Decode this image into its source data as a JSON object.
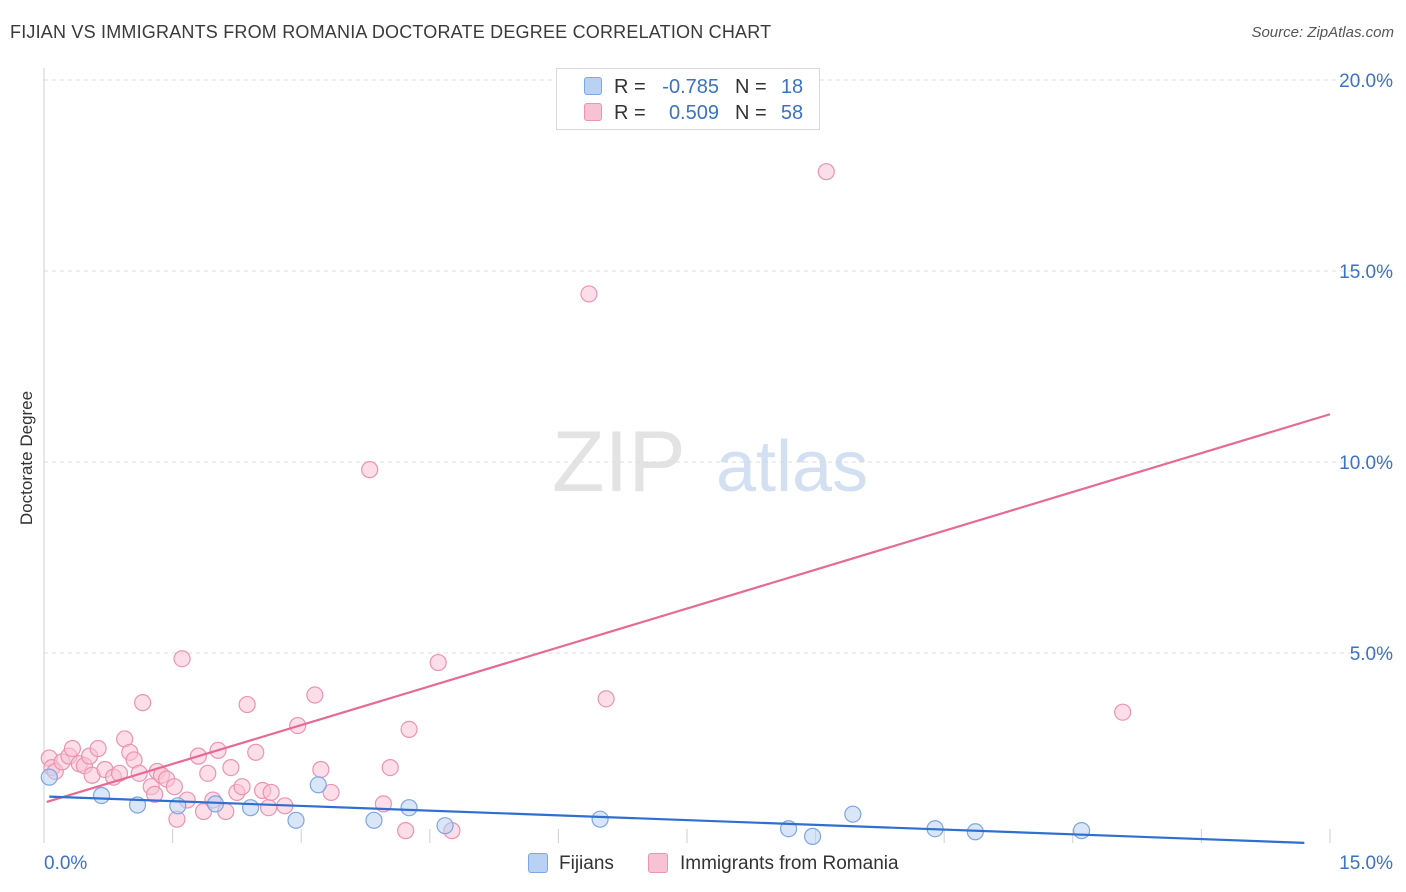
{
  "title": "FIJIAN VS IMMIGRANTS FROM ROMANIA DOCTORATE DEGREE CORRELATION CHART",
  "source": "Source: ZipAtlas.com",
  "watermark": {
    "zip": "ZIP",
    "atlas": "atlas"
  },
  "colors": {
    "blue_fill": "#b9d1f3",
    "blue_stroke": "#7ea6e0",
    "blue_line": "#2f6fd0",
    "pink_fill": "#f7c3d4",
    "pink_stroke": "#ec93b2",
    "pink_line": "#e56b96",
    "axis_text": "#3a72c4",
    "grid": "#dedede"
  },
  "stats": {
    "rows": [
      {
        "r_label": "R =",
        "r_value": "-0.785",
        "n_label": "N =",
        "n_value": "18"
      },
      {
        "r_label": "R =",
        "r_value": "0.509",
        "n_label": "N =",
        "n_value": "58"
      }
    ]
  },
  "chart_data": {
    "type": "scatter",
    "title": "FIJIAN VS IMMIGRANTS FROM ROMANIA DOCTORATE DEGREE CORRELATION CHART",
    "xlabel": "",
    "ylabel": "Doctorate Degree",
    "xlim": [
      0,
      15
    ],
    "ylim": [
      0,
      20.5
    ],
    "x_tick_labels": [
      "0.0%",
      "15.0%"
    ],
    "y_ticks": [
      5,
      10,
      15,
      20
    ],
    "y_tick_labels": [
      "5.0%",
      "10.0%",
      "15.0%",
      "20.0%"
    ],
    "legend": [
      "Fijians",
      "Immigrants from Romania"
    ],
    "legend_position": "bottom-center",
    "series": [
      {
        "name": "Fijians",
        "points": [
          [
            0.05,
            1.75
          ],
          [
            0.66,
            1.27
          ],
          [
            1.08,
            1.02
          ],
          [
            1.55,
            1.0
          ],
          [
            1.99,
            1.05
          ],
          [
            2.4,
            0.95
          ],
          [
            2.93,
            0.62
          ],
          [
            3.19,
            1.55
          ],
          [
            3.84,
            0.62
          ],
          [
            4.25,
            0.95
          ],
          [
            4.67,
            0.48
          ],
          [
            6.48,
            0.65
          ],
          [
            8.68,
            0.4
          ],
          [
            8.96,
            0.2
          ],
          [
            9.43,
            0.78
          ],
          [
            10.39,
            0.4
          ],
          [
            10.86,
            0.32
          ],
          [
            12.1,
            0.35
          ]
        ],
        "trend": [
          [
            0.05,
            1.24
          ],
          [
            14.7,
            0.03
          ]
        ]
      },
      {
        "name": "Immigrants from Romania",
        "points": [
          [
            0.05,
            2.25
          ],
          [
            0.08,
            2.0
          ],
          [
            0.12,
            1.9
          ],
          [
            0.2,
            2.15
          ],
          [
            0.28,
            2.3
          ],
          [
            0.32,
            2.5
          ],
          [
            0.4,
            2.1
          ],
          [
            0.46,
            2.05
          ],
          [
            0.52,
            2.3
          ],
          [
            0.55,
            1.8
          ],
          [
            0.62,
            2.5
          ],
          [
            0.7,
            1.95
          ],
          [
            0.8,
            1.75
          ],
          [
            0.87,
            1.85
          ],
          [
            0.93,
            2.75
          ],
          [
            0.99,
            2.4
          ],
          [
            1.04,
            2.2
          ],
          [
            1.1,
            1.85
          ],
          [
            1.14,
            3.7
          ],
          [
            1.24,
            1.5
          ],
          [
            1.28,
            1.3
          ],
          [
            1.31,
            1.9
          ],
          [
            1.36,
            1.8
          ],
          [
            1.42,
            1.7
          ],
          [
            1.51,
            1.5
          ],
          [
            1.54,
            0.65
          ],
          [
            1.6,
            4.85
          ],
          [
            1.66,
            1.15
          ],
          [
            1.79,
            2.3
          ],
          [
            1.85,
            0.85
          ],
          [
            1.9,
            1.85
          ],
          [
            1.96,
            1.15
          ],
          [
            2.02,
            2.45
          ],
          [
            2.11,
            0.85
          ],
          [
            2.17,
            2.0
          ],
          [
            2.24,
            1.35
          ],
          [
            2.3,
            1.5
          ],
          [
            2.36,
            3.65
          ],
          [
            2.46,
            2.4
          ],
          [
            2.54,
            1.4
          ],
          [
            2.61,
            0.95
          ],
          [
            2.64,
            1.35
          ],
          [
            2.8,
            1.0
          ],
          [
            2.95,
            3.1
          ],
          [
            3.15,
            3.9
          ],
          [
            3.22,
            1.95
          ],
          [
            3.34,
            1.35
          ],
          [
            3.79,
            9.8
          ],
          [
            3.95,
            1.05
          ],
          [
            4.03,
            2.0
          ],
          [
            4.21,
            0.35
          ],
          [
            4.25,
            3.0
          ],
          [
            4.59,
            4.75
          ],
          [
            4.75,
            0.35
          ],
          [
            6.35,
            14.4
          ],
          [
            6.55,
            3.8
          ],
          [
            9.12,
            17.6
          ],
          [
            12.58,
            3.45
          ]
        ],
        "trend": [
          [
            0.02,
            1.1
          ],
          [
            15.0,
            11.25
          ]
        ]
      }
    ]
  }
}
